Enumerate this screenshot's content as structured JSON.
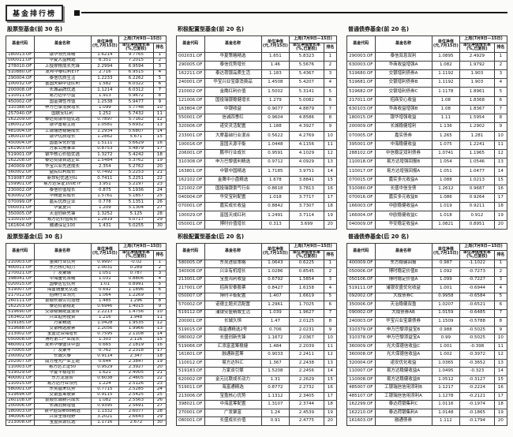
{
  "page": {
    "title": "基金排行榜"
  },
  "columns": {
    "code": "基金代码",
    "name": "基金名称",
    "nav_line1": "单位净值",
    "nav_line2": "(元,7月15日)",
    "week_span": "上周(7月9日—15日)",
    "growth_line1": "单位净值增长率",
    "growth_line2": "(%,已复权)",
    "rank": "排名"
  },
  "tables": [
    {
      "title": "股票型基金(前 30 名)",
      "rows": [
        [
          "180013.OF",
          "银华领先策略",
          "1.6214",
          "9.7765",
          "1"
        ],
        [
          "000011.OF",
          "华夏大盘精选",
          "8.351",
          "7.2015",
          "2"
        ],
        [
          "278010.OF",
          "上投摩根成长先锋",
          "2.2994",
          "6.9594",
          "3"
        ],
        [
          "510880.OF",
          "友邦华泰红利ETF",
          "2.716",
          "6.9515",
          "4"
        ],
        [
          "290004.OF",
          "泰信优质生活",
          "1.2233",
          "6.2262",
          "5"
        ],
        [
          "100032.OF",
          "富国天鼎中证红利",
          "1.582",
          "6.0322",
          "6"
        ],
        [
          "200008.OF",
          "长城品牌优选",
          "1.1214",
          "6.0312",
          "7"
        ],
        [
          "110011.OF",
          "易方达中小盘",
          "1.913",
          "5.9672",
          "8"
        ],
        [
          "450002.OF",
          "国富弹性市值",
          "1.2538",
          "5.9477",
          "9"
        ],
        [
          "310388.OF",
          "申万巴黎消费增长",
          "1.099",
          "5.7748",
          "10"
        ],
        [
          "257040.OF",
          "国联安红利",
          "1.252",
          "5.7432",
          "11"
        ],
        [
          "162209.OF",
          "泰达荷银市值优选",
          "0.7897",
          "5.7162",
          "12"
        ],
        [
          "180012.OF",
          "银华富裕主题",
          "1.0581",
          "5.6932",
          "13"
        ],
        [
          "481004.OF",
          "工银瑞信稳健成长",
          "1.2934",
          "5.6807",
          "14"
        ],
        [
          "180010.OF",
          "银华优质增长",
          "1.2862",
          "5.671",
          "15"
        ],
        [
          "450004.OF",
          "国富深化价值",
          "1.5111",
          "5.6629",
          "16"
        ],
        [
          "161903.OF",
          "万家公用事业",
          "0.8753",
          "5.4879",
          "17"
        ],
        [
          "519001.OF",
          "银华核心价值优选",
          "1.3272",
          "5.4242",
          "18"
        ],
        [
          "162208.OF",
          "泰达荷银首选企业",
          "1.5484",
          "5.3762",
          "19"
        ],
        [
          "240009.OF",
          "华宝兴业先进成长",
          "2.354",
          "5.2762",
          "20"
        ],
        [
          "560002.OF",
          "益民红利成长",
          "0.7492",
          "5.2253",
          "21"
        ],
        [
          "519087.OF",
          "新世纪优选分红",
          "0.7411",
          "5.2251",
          "22"
        ],
        [
          "159901.OF",
          "易方达深证100ETF",
          "3.951",
          "5.2197",
          "23"
        ],
        [
          "230002.OF",
          "泰信价值增长",
          "0.875",
          "5.1936",
          "24"
        ],
        [
          "630002.OF",
          "华商盛世成长",
          "1.5761",
          "5.1857",
          "25"
        ],
        [
          "070099.OF",
          "嘉实优质企业",
          "0.778",
          "5.1351",
          "26"
        ],
        [
          "000031.OF",
          "华夏复兴",
          "1.209",
          "5.1304",
          "27"
        ],
        [
          "350005.OF",
          "天治创新先锋",
          "1.3252",
          "5.125",
          "28"
        ],
        [
          "110010.OF",
          "易方达价值成长",
          "1.2819",
          "5.0717",
          "29"
        ],
        [
          "161604.OF",
          "融通深证100",
          "1.431",
          "5.0255",
          "30"
        ]
      ]
    },
    {
      "title": "积极配置型基金(前 20 名)",
      "rows": [
        [
          "002031.OF",
          "华夏策略精选",
          "1.651",
          "5.8323",
          "1"
        ],
        [
          "290005.OF",
          "泰信优势增长",
          "1.46",
          "5.5676",
          "2"
        ],
        [
          "162211.OF",
          "泰达荷银品质生活",
          "1.183",
          "5.4367",
          "3"
        ],
        [
          "240001.OF",
          "华宝兴业宝康消费品",
          "1.4508",
          "5.4207",
          "4"
        ],
        [
          "210002.OF",
          "金鹰红利价值",
          "1.5002",
          "5.3141",
          "5"
        ],
        [
          "121006.OF",
          "国投瑞银稳健增长",
          "1.279",
          "5.0082",
          "6"
        ],
        [
          "163804.OF",
          "中银收益",
          "0.9077",
          "4.8879",
          "7"
        ],
        [
          "550001.OF",
          "信诚四季红",
          "0.9604",
          "4.8586",
          "8"
        ],
        [
          "320006.OF",
          "诺安灵活配置",
          "1.188",
          "4.3927",
          "9"
        ],
        [
          "233001.OF",
          "大摩基础行业混合",
          "0.5622",
          "4.2769",
          "10"
        ],
        [
          "100016.OF",
          "富国天源平衡",
          "1.0448",
          "4.1156",
          "11"
        ],
        [
          "206001.OF",
          "鹏华行业成长",
          "0.9591",
          "4.1029",
          "12"
        ],
        [
          "310308.OF",
          "申万巴黎盛利精选",
          "0.9712",
          "4.0929",
          "13"
        ],
        [
          "163801.OF",
          "中银中国精选",
          "1.7185",
          "3.9751",
          "14"
        ],
        [
          "162102.OF",
          "金鹰中小盘精选",
          "1.678",
          "3.8841",
          "15"
        ],
        [
          "121002.OF",
          "国投瑞银景气行业",
          "0.8618",
          "3.7813",
          "16"
        ],
        [
          "040004.OF",
          "华安宝利配置",
          "1.018",
          "3.7717",
          "17"
        ],
        [
          "070001.OF",
          "嘉实成长收益",
          "0.8842",
          "3.7307",
          "18"
        ],
        [
          "100029.OF",
          "富国天成红利",
          "1.2491",
          "3.7114",
          "19"
        ],
        [
          "050001.OF",
          "博时价值增长",
          "0.313",
          "3.699",
          "20"
        ]
      ]
    },
    {
      "title": "普通债券基金(前 20 名)",
      "rows": [
        [
          "290003.OF",
          "泰信双息双利",
          "1.0895",
          "2.4929",
          "1"
        ],
        [
          "630003.OF",
          "华商收益增强A",
          "1.082",
          "1.9792",
          "2"
        ],
        [
          "519680.OF",
          "交银增利债券A",
          "1.1192",
          "1.903",
          "3"
        ],
        [
          "519681.OF",
          "交银增利债券B",
          "1.1192",
          "1.903",
          "4"
        ],
        [
          "519682.OF",
          "交银增利债券C",
          "1.1178",
          "1.8961",
          "5"
        ],
        [
          "217011.OF",
          "招商安心收益",
          "1.08",
          "1.8368",
          "6"
        ],
        [
          "630103.OF",
          "华商收益增强B",
          "1.08",
          "1.8367",
          "7"
        ],
        [
          "180015.OF",
          "银华增强收益",
          "1.11",
          "1.5954",
          "8"
        ],
        [
          "200009.OF",
          "长城稳健增利",
          "1.136",
          "1.2902",
          "9"
        ],
        [
          "070005.OF",
          "嘉实债券",
          "1.265",
          "1.281",
          "10"
        ],
        [
          "395001.OF",
          "中海稳健收益",
          "1.075",
          "1.2241",
          "11"
        ],
        [
          "288102.OF",
          "中信稳定双利债券",
          "1.0741",
          "1.1965",
          "12"
        ],
        [
          "110018.OF",
          "易方达增强回报B",
          "1.054",
          "1.0546",
          "13"
        ],
        [
          "110017.OF",
          "易方达增强回报A",
          "1.051",
          "1.0477",
          "14"
        ],
        [
          "070015.OF",
          "嘉实多元收益A",
          "1.088",
          "1.0213",
          "15"
        ],
        [
          "510080.OF",
          "长盛中信全债",
          "1.2612",
          "0.9687",
          "16"
        ],
        [
          "070016.OF",
          "嘉实多元收益B",
          "1.086",
          "0.9264",
          "17"
        ],
        [
          "166003.OF",
          "中欧稳健收益A",
          "1.019",
          "0.9211",
          "18"
        ],
        [
          "166004.OF",
          "中欧稳健收益C",
          "1.018",
          "0.912",
          "19"
        ],
        [
          "040009.OF",
          "华安稳定收益A",
          "1.0821",
          "0.8951",
          "20"
        ]
      ]
    },
    {
      "title": "股票型基金(后 30 名)",
      "rows": [
        [
          "210003.OF",
          "金鹰行业优势",
          "0.9997",
          "-0.02",
          "1"
        ],
        [
          "400011.OF",
          "东方核心动力",
          "1.0031",
          "0.289",
          "2"
        ],
        [
          "270021.OF",
          "广发聚瑞",
          "1.051",
          "0.787",
          "3"
        ],
        [
          "398041.OF",
          "中海量化策略",
          "1.031",
          "0.8806",
          "4"
        ],
        [
          "020015.OF",
          "国泰区位优势",
          "1.01",
          "0.8991",
          "5"
        ],
        [
          "519007.OF",
          "海富通量化优选",
          "0.692",
          "1.1896",
          "6"
        ],
        [
          "217012.OF",
          "招商行业领先",
          "1.064",
          "1.2269",
          "7"
        ],
        [
          "260111.OF",
          "景顺长城公司治理",
          "1.485",
          "1.296",
          "8"
        ],
        [
          "162203.OF",
          "泰达荷银稳定",
          "0.6946",
          "1.4015",
          "9"
        ],
        [
          "519690.OF",
          "交银稳健配置混合",
          "2.2213",
          "1.4756",
          "10"
        ],
        [
          "163402.OF",
          "兴业趋势投资",
          "1.216",
          "1.948",
          "11"
        ],
        [
          "519185.OF",
          "万家精选",
          "1.0428",
          "1.9535",
          "12"
        ],
        [
          "519688.OF",
          "交银精选股票",
          "1.2056",
          "1.9966",
          "13"
        ],
        [
          "213002.OF",
          "宝盈泛沿海增长",
          "0.7595",
          "2.1108",
          "14"
        ],
        [
          "050008.OF",
          "博时第三产业成长",
          "1.303",
          "2.116",
          "15"
        ],
        [
          "460001.OF",
          "友邦华泰盛世中国",
          "0.665",
          "2.1819",
          "16"
        ],
        [
          "270005.OF",
          "广发聚丰",
          "0.762",
          "2.2318",
          "17"
        ],
        [
          "200002.OF",
          "长城久泰",
          "0.9114",
          "2.347",
          "18"
        ],
        [
          "202007.OF",
          "南方隆元产业主题",
          "0.644",
          "2.3847",
          "19"
        ],
        [
          "110003.OF",
          "易方达上证50",
          "0.9529",
          "2.3927",
          "20"
        ],
        [
          "519029.OF",
          "华夏平稳增长",
          "1.621",
          "2.4005",
          "21"
        ],
        [
          "400001.OF",
          "东方龙混合",
          "0.6038",
          "2.4605",
          "22"
        ],
        [
          "110015.OF",
          "易方达行业领先",
          "1.224",
          "2.5126",
          "23"
        ],
        [
          "580001.OF",
          "东吴嘉禾优势",
          "0.7715",
          "2.5285",
          "24"
        ],
        [
          "519694.OF",
          "交银蓝筹股票",
          "0.9115",
          "2.5425",
          "25"
        ],
        [
          "260108.OF",
          "景顺长城新兴成长",
          "1.082",
          "2.5563",
          "26"
        ],
        [
          "200006.OF",
          "长城消费增值",
          "0.9395",
          "2.5691",
          "27"
        ],
        [
          "180003.OF",
          "银华道琼斯88精选",
          "1.1332",
          "2.6077",
          "28"
        ],
        [
          "340006.OF",
          "兴业全球视野",
          "3.2021",
          "2.6643",
          "29"
        ],
        [
          "213008.OF",
          "宝盈资源优选",
          "1.1716",
          "2.672",
          "30"
        ]
      ]
    },
    {
      "title": "积极配置型基金(后 20 名)",
      "rows": [
        [
          "580005.OF",
          "东吴进取策略",
          "1.0643",
          "0.6225",
          "1"
        ],
        [
          "340008.OF",
          "兴业有机增长",
          "1.0286",
          "0.8545",
          "2"
        ],
        [
          "213001.OF",
          "宝盈鸿利收益",
          "0.6792",
          "1.5854",
          "3"
        ],
        [
          "217001.OF",
          "招商安泰股票",
          "0.8427",
          "1.6158",
          "4"
        ],
        [
          "050007.OF",
          "博时平衡配置",
          "1.407",
          "1.6619",
          "5"
        ],
        [
          "570002.OF",
          "诺德主题灵活配置",
          "1.2961",
          "1.7025",
          "6"
        ],
        [
          "519112.OF",
          "浦银安盛精致生活",
          "1.039",
          "1.9627",
          "7"
        ],
        [
          "200001.OF",
          "长城久恒",
          "1.47",
          "2.0125",
          "8"
        ],
        [
          "519015.OF",
          "海富通精选2号",
          "0.706",
          "2.0231",
          "9"
        ],
        [
          "080002.OF",
          "长盛创新先锋",
          "1.1672",
          "2.0367",
          "10"
        ],
        [
          "519066.OF",
          "汇添富蓝筹稳健",
          "1.484",
          "2.2039",
          "11"
        ],
        [
          "161601.OF",
          "融通新蓝筹",
          "0.9033",
          "2.2411",
          "12"
        ],
        [
          "110012.OF",
          "易方达科汇",
          "1.367",
          "2.2438",
          "13"
        ],
        [
          "519183.OF",
          "万家双引擎",
          "1.5208",
          "2.2456",
          "14"
        ],
        [
          "620002.OF",
          "金元比联成长动力",
          "1.31",
          "2.2629",
          "15"
        ],
        [
          "519011.OF",
          "海富通精选",
          "0.8772",
          "2.2732",
          "16"
        ],
        [
          "213006.OF",
          "宝盈核心优势",
          "1.1312",
          "2.3405",
          "17"
        ],
        [
          "398021.OF",
          "中海蓝筹配置",
          "1.3107",
          "2.3744",
          "18"
        ],
        [
          "270001.OF",
          "广发聚富",
          "1.24",
          "2.4539",
          "19"
        ],
        [
          "080001.OF",
          "长盛成长价值",
          "0.91",
          "2.4775",
          "20"
        ]
      ]
    },
    {
      "title": "普通债券基金(后 20 名)",
      "rows": [
        [
          "400009.OF",
          "东方稳健回报",
          "0.987",
          "-1.1022",
          "1"
        ],
        [
          "050006.OF",
          "博时稳定价值B",
          "1.092",
          "-0.7273",
          "2"
        ],
        [
          "050106.OF",
          "博时稳定价值A",
          "1.099",
          "-0.7227",
          "3"
        ],
        [
          "519111.OF",
          "浦银安盛优化收益",
          "1.001",
          "-0.6944",
          "4"
        ],
        [
          "092002.OF",
          "大成债券C",
          "0.9958",
          "-0.6584",
          "5"
        ],
        [
          "350006.OF",
          "天治稳健双盈",
          "1.0207",
          "-0.6521",
          "6"
        ],
        [
          "090002.OF",
          "大成债券AB",
          "1.0159",
          "-0.6485",
          "7"
        ],
        [
          "240003.OF",
          "华宝兴业宝康债券",
          "1.1509",
          "-0.5788",
          "8"
        ],
        [
          "310379.OF",
          "申万巴黎添益宝B",
          "0.988",
          "-0.5025",
          "9"
        ],
        [
          "310378.OF",
          "申万巴黎添益宝A",
          "0.99",
          "-0.5025",
          "10"
        ],
        [
          "360009.OF",
          "光大保德信收益C",
          "1.001",
          "-0.398",
          "11"
        ],
        [
          "360008.OF",
          "光大保德信收益A",
          "1.002",
          "-0.3972",
          "12"
        ],
        [
          "320004.OF",
          "诺安优化收益",
          "1.0365",
          "-0.3652",
          "13"
        ],
        [
          "110007.OF",
          "易方达稳健收益A",
          "1.0495",
          "-0.323",
          "14"
        ],
        [
          "110008.OF",
          "易方达稳健收益B",
          "1.0512",
          "-0.3127",
          "15"
        ],
        [
          "485007.OF",
          "工银瑞信信用添利B",
          "1.1217",
          "-0.2224",
          "16"
        ],
        [
          "485107.OF",
          "工银瑞信信用添利A",
          "1.1278",
          "-0.2121",
          "17"
        ],
        [
          "162299.OF",
          "泰达荷银集利C",
          "1.0116",
          "-0.1974",
          "18"
        ],
        [
          "162210.OF",
          "泰达荷银集利A",
          "1.0148",
          "-0.1865",
          "19"
        ],
        [
          "161603.OF",
          "融通债券",
          "1.112",
          "-0.1794",
          "20"
        ]
      ]
    }
  ]
}
